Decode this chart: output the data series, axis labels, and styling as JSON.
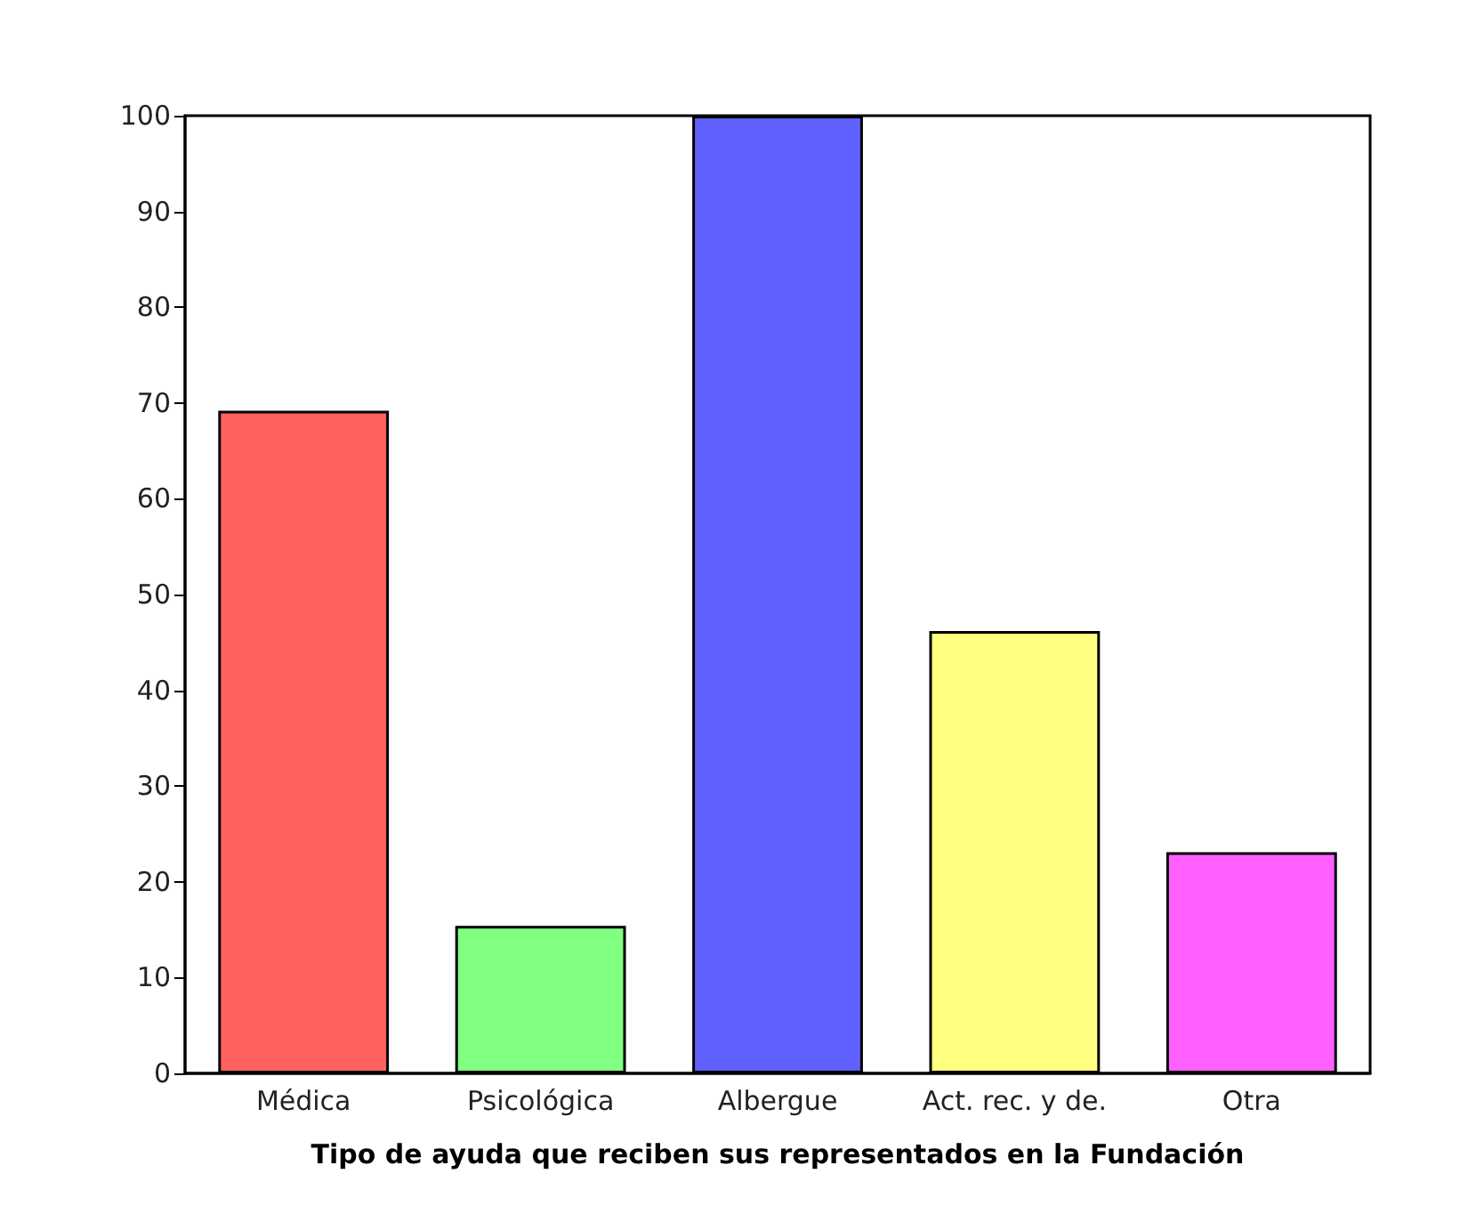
{
  "chart_data": {
    "type": "bar",
    "xlabel": "Tipo de ayuda que reciben sus representados en la Fundación",
    "categories": [
      "Médica",
      "Psicológica",
      "Albergue",
      "Act. rec. y de.",
      "Otra"
    ],
    "values": [
      69.2,
      15.4,
      100,
      46.2,
      23.1
    ],
    "colors": [
      "#ff6060",
      "#80ff80",
      "#6060ff",
      "#ffff80",
      "#ff60ff"
    ],
    "ylim": [
      0,
      100
    ],
    "yticks": [
      0,
      10,
      20,
      30,
      40,
      50,
      60,
      70,
      80,
      90,
      100
    ]
  }
}
